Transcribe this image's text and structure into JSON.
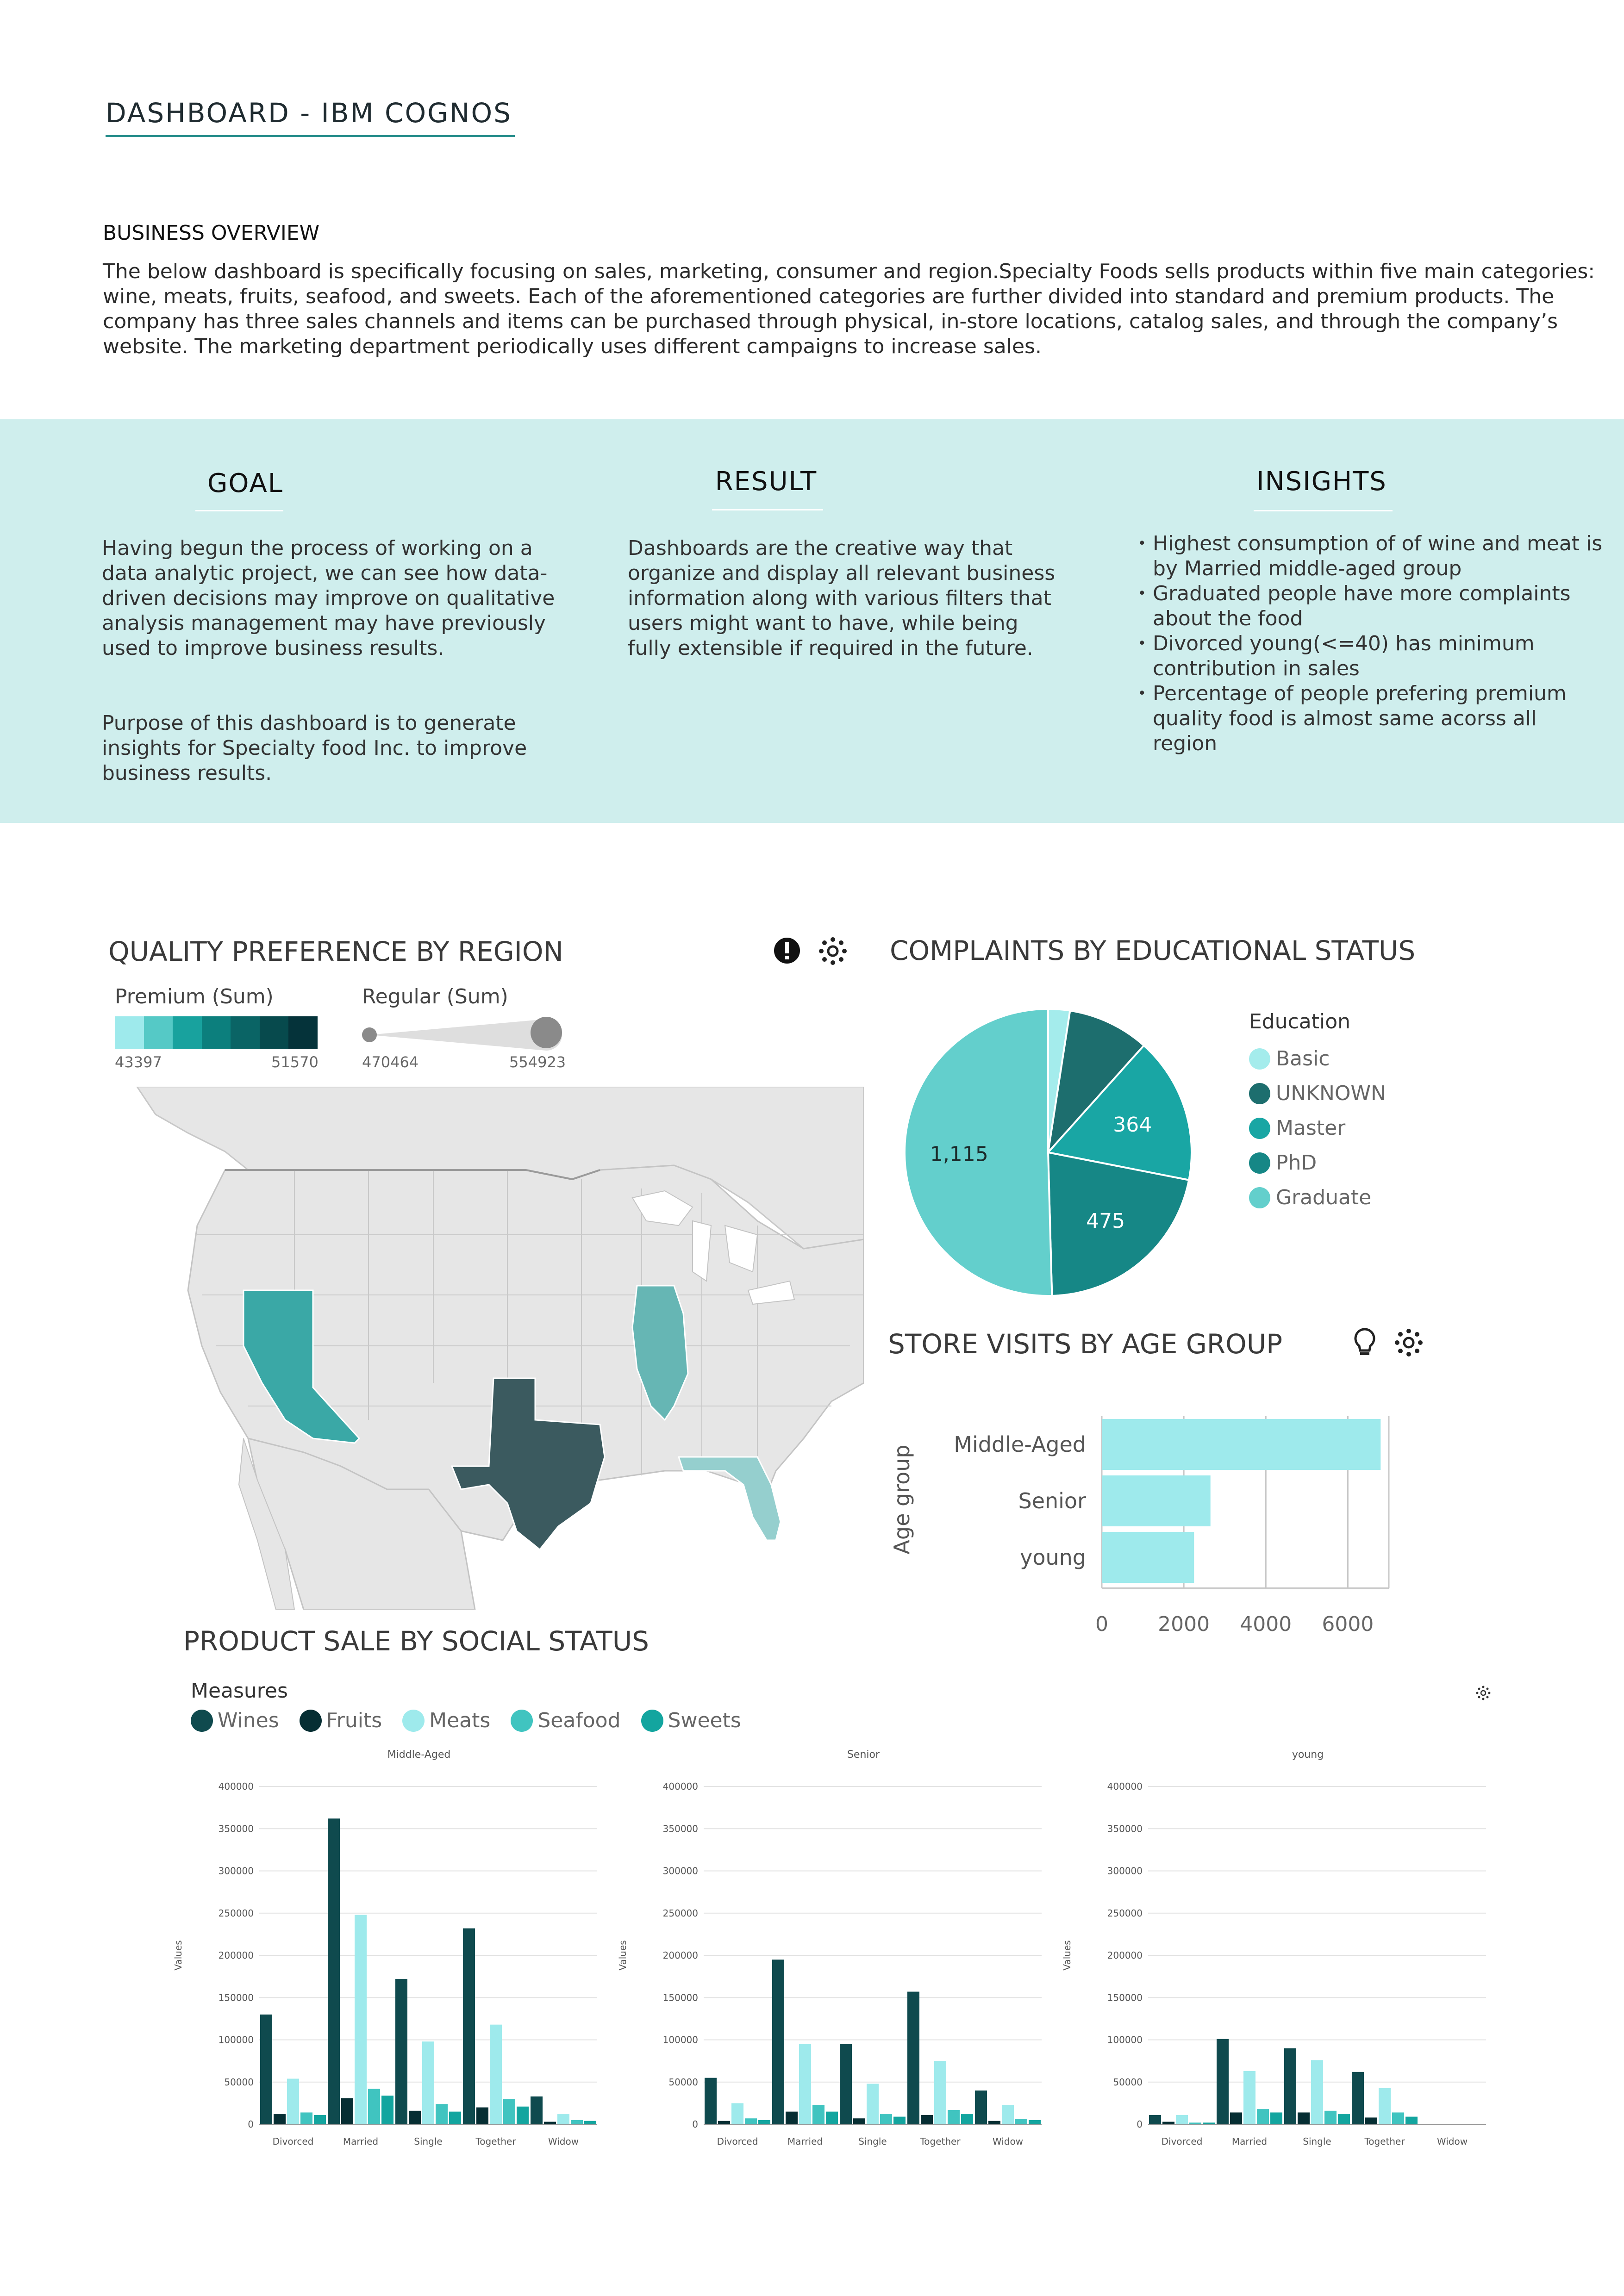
{
  "header": {
    "title": "DASHBOARD - IBM COGNOS"
  },
  "overview": {
    "heading": "BUSINESS OVERVIEW",
    "text": "The below dashboard is specifically focusing on sales, marketing, consumer and region.Specialty Foods sells products within five main categories: wine, meats, fruits, seafood, and sweets. Each of the aforementioned categories are further divided into standard and premium products. The company has three sales channels and items can be purchased through physical, in-store locations, catalog sales, and through the company’s website. The marketing department periodically uses different campaigns to increase sales."
  },
  "goal": {
    "heading": "GOAL",
    "p1": "Having begun the process of working on a data analytic project, we can see how data-driven decisions may improve on qualitative analysis management may have previously used to improve business results.",
    "p2": "Purpose of this dashboard is to generate insights for Specialty food Inc. to improve business results."
  },
  "result": {
    "heading": "RESULT",
    "text": "Dashboards are the creative way that organize and display all relevant business information along with various filters that users might want to have, while being fully extensible if required in the future."
  },
  "insights": {
    "heading": "INSIGHTS",
    "items": [
      "Highest consumption of of wine and meat is by Married middle-aged group",
      "Graduated people have more complaints about the food",
      "Divorced young(<=40) has minimum contribution in sales",
      "Percentage of people prefering premium quality food is almost same acorss all region"
    ]
  },
  "map": {
    "title": "QUALITY PREFERENCE BY REGION",
    "premium_label": "Premium (Sum)",
    "premium_min": "43397",
    "premium_max": "51570",
    "regular_label": "Regular (Sum)",
    "regular_min": "470464",
    "regular_max": "554923",
    "colors": {
      "california": "#3aa8a6",
      "texas": "#3b5a5f",
      "illinois": "#66b6b4",
      "florida": "#95cfce",
      "land": "#e6e6e6"
    }
  },
  "chart_data": [
    {
      "type": "pie",
      "title": "COMPLAINTS BY EDUCATIONAL STATUS",
      "legend_title": "Education",
      "legend_position": "right",
      "slices": [
        {
          "label": "Basic",
          "value": 54,
          "color": "#a4ecec"
        },
        {
          "label": "UNKNOWN",
          "value": 203,
          "color": "#1d6e6e"
        },
        {
          "label": "Master",
          "value": 364,
          "color": "#19a6a4"
        },
        {
          "label": "PhD",
          "value": 475,
          "color": "#168786"
        },
        {
          "label": "Graduate",
          "value": 1115,
          "color": "#63cfcc"
        }
      ],
      "data_labels": [
        "1,115",
        "475",
        "364"
      ]
    },
    {
      "type": "bar",
      "orientation": "horizontal",
      "title": "STORE VISITS BY AGE GROUP",
      "ylabel": "Age group",
      "categories": [
        "Middle-Aged",
        "Senior",
        "young"
      ],
      "values": [
        6800,
        2650,
        2250
      ],
      "xlim": [
        0,
        7000
      ],
      "xticks": [
        "0",
        "2000",
        "4000",
        "6000"
      ],
      "color": "#9eeaec"
    },
    {
      "type": "bar",
      "title": "PRODUCT SALE BY SOCIAL STATUS",
      "legend_title": "Measures",
      "legend_position": "top-left",
      "ylabel": "Values",
      "ylim": [
        0,
        400000
      ],
      "yticks": [
        "0",
        "50000",
        "100000",
        "150000",
        "200000",
        "250000",
        "300000",
        "350000",
        "400000"
      ],
      "categories": [
        "Divorced",
        "Married",
        "Single",
        "Together",
        "Widow"
      ],
      "series_meta": [
        {
          "name": "Wines",
          "color": "#0f4a4e"
        },
        {
          "name": "Fruits",
          "color": "#062e33"
        },
        {
          "name": "Meats",
          "color": "#9eeaec"
        },
        {
          "name": "Seafood",
          "color": "#40c4c0"
        },
        {
          "name": "Sweets",
          "color": "#13a59f"
        }
      ],
      "panels": [
        {
          "label": "Middle-Aged",
          "series": [
            {
              "name": "Wines",
              "values": [
                130000,
                362000,
                172000,
                232000,
                33000
              ]
            },
            {
              "name": "Fruits",
              "values": [
                12000,
                31000,
                16000,
                20000,
                3000
              ]
            },
            {
              "name": "Meats",
              "values": [
                54000,
                248000,
                98000,
                118000,
                12000
              ]
            },
            {
              "name": "Seafood",
              "values": [
                14000,
                42000,
                24000,
                30000,
                5000
              ]
            },
            {
              "name": "Sweets",
              "values": [
                11000,
                34000,
                15000,
                21000,
                4000
              ]
            }
          ]
        },
        {
          "label": "Senior",
          "series": [
            {
              "name": "Wines",
              "values": [
                55000,
                195000,
                95000,
                157000,
                40000
              ]
            },
            {
              "name": "Fruits",
              "values": [
                4000,
                15000,
                7000,
                11000,
                4000
              ]
            },
            {
              "name": "Meats",
              "values": [
                25000,
                95000,
                48000,
                75000,
                23000
              ]
            },
            {
              "name": "Seafood",
              "values": [
                7000,
                23000,
                12000,
                17000,
                6000
              ]
            },
            {
              "name": "Sweets",
              "values": [
                5000,
                15000,
                9000,
                12000,
                5000
              ]
            }
          ]
        },
        {
          "label": "young",
          "series": [
            {
              "name": "Wines",
              "values": [
                11000,
                101000,
                90000,
                62000,
                0
              ]
            },
            {
              "name": "Fruits",
              "values": [
                3000,
                14000,
                14000,
                8000,
                0
              ]
            },
            {
              "name": "Meats",
              "values": [
                11000,
                63000,
                76000,
                43000,
                0
              ]
            },
            {
              "name": "Seafood",
              "values": [
                2000,
                18000,
                16000,
                14000,
                0
              ]
            },
            {
              "name": "Sweets",
              "values": [
                2000,
                14000,
                12000,
                9000,
                0
              ]
            }
          ]
        }
      ]
    }
  ]
}
